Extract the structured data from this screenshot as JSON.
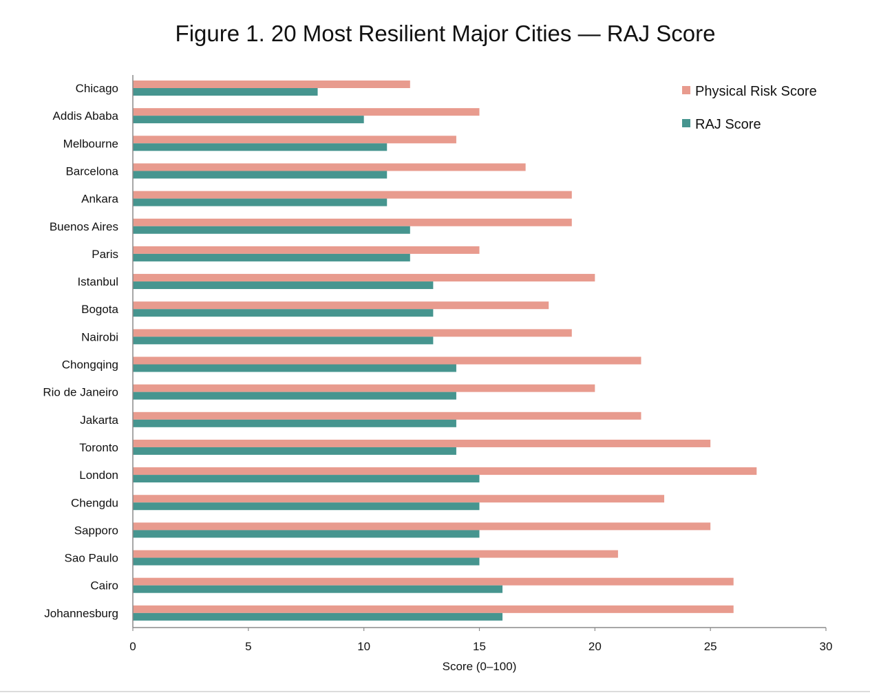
{
  "chart_data": {
    "type": "bar",
    "orientation": "horizontal",
    "title": "Figure 1. 20 Most Resilient Major Cities — RAJ Score",
    "xlabel": "Score (0–100)",
    "ylabel": "",
    "xlim": [
      0,
      30
    ],
    "xticks": [
      0,
      5,
      10,
      15,
      20,
      25,
      30
    ],
    "grid": false,
    "legend_position": "top-right",
    "categories": [
      "Chicago",
      "Addis Ababa",
      "Melbourne",
      "Barcelona",
      "Ankara",
      "Buenos Aires",
      "Paris",
      "Istanbul",
      "Bogota",
      "Nairobi",
      "Chongqing",
      "Rio de Janeiro",
      "Jakarta",
      "Toronto",
      "London",
      "Chengdu",
      "Sapporo",
      "Sao Paulo",
      "Cairo",
      "Johannesburg"
    ],
    "series": [
      {
        "name": "Physical Risk Score",
        "color": "#e89b8e",
        "values": [
          12,
          15,
          14,
          17,
          19,
          19,
          15,
          20,
          18,
          19,
          22,
          20,
          22,
          25,
          27,
          23,
          25,
          21,
          26,
          26
        ]
      },
      {
        "name": "RAJ Score",
        "color": "#46958f",
        "values": [
          8,
          10,
          11,
          11,
          11,
          12,
          12,
          13,
          13,
          13,
          14,
          14,
          14,
          14,
          15,
          15,
          15,
          15,
          16,
          16
        ]
      }
    ]
  }
}
